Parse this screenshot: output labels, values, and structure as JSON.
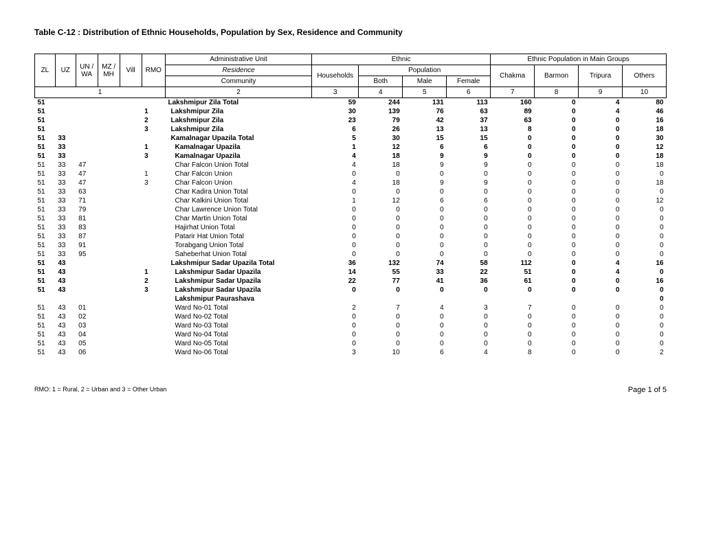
{
  "title": "Table C-12 : Distribution of Ethnic Households,  Population by Sex, Residence and Community",
  "header": {
    "zl": "ZL",
    "uz": "UZ",
    "un": "UN / WA",
    "mz": "MZ / MH",
    "vill": "Vill",
    "rmo": "RMO",
    "admin_unit": "Administrative Unit",
    "residence": "Residence",
    "community": "Community",
    "ethnic": "Ethnic",
    "main_groups": "Ethnic Population in Main Groups",
    "households": "Households",
    "population": "Population",
    "both": "Both",
    "male": "Male",
    "female": "Female",
    "chakma": "Chakma",
    "barmon": "Barmon",
    "tripura": "Tripura",
    "others": "Others",
    "colnums": [
      "1",
      "2",
      "3",
      "4",
      "5",
      "6",
      "7",
      "8",
      "9",
      "10"
    ]
  },
  "rows": [
    {
      "zl": "51",
      "uz": "",
      "un": "",
      "mz": "",
      "vill": "",
      "rmo": "",
      "admin": "Lakshmipur Zila Total",
      "indent": 0,
      "bold": true,
      "hh": "59",
      "both": "244",
      "male": "131",
      "female": "113",
      "chakma": "160",
      "barmon": "0",
      "tripura": "4",
      "others": "80"
    },
    {
      "zl": "51",
      "uz": "",
      "un": "",
      "mz": "",
      "vill": "",
      "rmo": "1",
      "admin": "Lakshmipur Zila",
      "indent": 1,
      "bold": true,
      "hh": "30",
      "both": "139",
      "male": "76",
      "female": "63",
      "chakma": "89",
      "barmon": "0",
      "tripura": "4",
      "others": "46"
    },
    {
      "zl": "51",
      "uz": "",
      "un": "",
      "mz": "",
      "vill": "",
      "rmo": "2",
      "admin": "Lakshmipur Zila",
      "indent": 1,
      "bold": true,
      "hh": "23",
      "both": "79",
      "male": "42",
      "female": "37",
      "chakma": "63",
      "barmon": "0",
      "tripura": "0",
      "others": "16"
    },
    {
      "zl": "51",
      "uz": "",
      "un": "",
      "mz": "",
      "vill": "",
      "rmo": "3",
      "admin": "Lakshmipur Zila",
      "indent": 1,
      "bold": true,
      "hh": "6",
      "both": "26",
      "male": "13",
      "female": "13",
      "chakma": "8",
      "barmon": "0",
      "tripura": "0",
      "others": "18"
    },
    {
      "zl": "51",
      "uz": "33",
      "un": "",
      "mz": "",
      "vill": "",
      "rmo": "",
      "admin": "Kamalnagar Upazila Total",
      "indent": 1,
      "bold": true,
      "hh": "5",
      "both": "30",
      "male": "15",
      "female": "15",
      "chakma": "0",
      "barmon": "0",
      "tripura": "0",
      "others": "30"
    },
    {
      "zl": "51",
      "uz": "33",
      "un": "",
      "mz": "",
      "vill": "",
      "rmo": "1",
      "admin": "Kamalnagar Upazila",
      "indent": 2,
      "bold": true,
      "hh": "1",
      "both": "12",
      "male": "6",
      "female": "6",
      "chakma": "0",
      "barmon": "0",
      "tripura": "0",
      "others": "12"
    },
    {
      "zl": "51",
      "uz": "33",
      "un": "",
      "mz": "",
      "vill": "",
      "rmo": "3",
      "admin": "Kamalnagar Upazila",
      "indent": 2,
      "bold": true,
      "hh": "4",
      "both": "18",
      "male": "9",
      "female": "9",
      "chakma": "0",
      "barmon": "0",
      "tripura": "0",
      "others": "18"
    },
    {
      "zl": "51",
      "uz": "33",
      "un": "47",
      "mz": "",
      "vill": "",
      "rmo": "",
      "admin": "Char Falcon Union Total",
      "indent": 2,
      "bold": false,
      "hh": "4",
      "both": "18",
      "male": "9",
      "female": "9",
      "chakma": "0",
      "barmon": "0",
      "tripura": "0",
      "others": "18"
    },
    {
      "zl": "51",
      "uz": "33",
      "un": "47",
      "mz": "",
      "vill": "",
      "rmo": "1",
      "admin": "Char Falcon Union",
      "indent": 2,
      "bold": false,
      "hh": "0",
      "both": "0",
      "male": "0",
      "female": "0",
      "chakma": "0",
      "barmon": "0",
      "tripura": "0",
      "others": "0"
    },
    {
      "zl": "51",
      "uz": "33",
      "un": "47",
      "mz": "",
      "vill": "",
      "rmo": "3",
      "admin": "Char Falcon Union",
      "indent": 2,
      "bold": false,
      "hh": "4",
      "both": "18",
      "male": "9",
      "female": "9",
      "chakma": "0",
      "barmon": "0",
      "tripura": "0",
      "others": "18"
    },
    {
      "zl": "51",
      "uz": "33",
      "un": "63",
      "mz": "",
      "vill": "",
      "rmo": "",
      "admin": "Char Kadira Union Total",
      "indent": 2,
      "bold": false,
      "hh": "0",
      "both": "0",
      "male": "0",
      "female": "0",
      "chakma": "0",
      "barmon": "0",
      "tripura": "0",
      "others": "0"
    },
    {
      "zl": "51",
      "uz": "33",
      "un": "71",
      "mz": "",
      "vill": "",
      "rmo": "",
      "admin": "Char Kalkini Union Total",
      "indent": 2,
      "bold": false,
      "hh": "1",
      "both": "12",
      "male": "6",
      "female": "6",
      "chakma": "0",
      "barmon": "0",
      "tripura": "0",
      "others": "12"
    },
    {
      "zl": "51",
      "uz": "33",
      "un": "79",
      "mz": "",
      "vill": "",
      "rmo": "",
      "admin": "Char Lawrence Union Total",
      "indent": 2,
      "bold": false,
      "hh": "0",
      "both": "0",
      "male": "0",
      "female": "0",
      "chakma": "0",
      "barmon": "0",
      "tripura": "0",
      "others": "0"
    },
    {
      "zl": "51",
      "uz": "33",
      "un": "81",
      "mz": "",
      "vill": "",
      "rmo": "",
      "admin": "Char Martin Union Total",
      "indent": 2,
      "bold": false,
      "hh": "0",
      "both": "0",
      "male": "0",
      "female": "0",
      "chakma": "0",
      "barmon": "0",
      "tripura": "0",
      "others": "0"
    },
    {
      "zl": "51",
      "uz": "33",
      "un": "83",
      "mz": "",
      "vill": "",
      "rmo": "",
      "admin": "Hajirhat Union Total",
      "indent": 2,
      "bold": false,
      "hh": "0",
      "both": "0",
      "male": "0",
      "female": "0",
      "chakma": "0",
      "barmon": "0",
      "tripura": "0",
      "others": "0"
    },
    {
      "zl": "51",
      "uz": "33",
      "un": "87",
      "mz": "",
      "vill": "",
      "rmo": "",
      "admin": "Patarir Hat Union Total",
      "indent": 2,
      "bold": false,
      "hh": "0",
      "both": "0",
      "male": "0",
      "female": "0",
      "chakma": "0",
      "barmon": "0",
      "tripura": "0",
      "others": "0"
    },
    {
      "zl": "51",
      "uz": "33",
      "un": "91",
      "mz": "",
      "vill": "",
      "rmo": "",
      "admin": "Torabgang Union Total",
      "indent": 2,
      "bold": false,
      "hh": "0",
      "both": "0",
      "male": "0",
      "female": "0",
      "chakma": "0",
      "barmon": "0",
      "tripura": "0",
      "others": "0"
    },
    {
      "zl": "51",
      "uz": "33",
      "un": "95",
      "mz": "",
      "vill": "",
      "rmo": "",
      "admin": "Saheberhat Union Total",
      "indent": 2,
      "bold": false,
      "hh": "0",
      "both": "0",
      "male": "0",
      "female": "0",
      "chakma": "0",
      "barmon": "0",
      "tripura": "0",
      "others": "0"
    },
    {
      "zl": "51",
      "uz": "43",
      "un": "",
      "mz": "",
      "vill": "",
      "rmo": "",
      "admin": "Lakshmipur Sadar Upazila Total",
      "indent": 1,
      "bold": true,
      "hh": "36",
      "both": "132",
      "male": "74",
      "female": "58",
      "chakma": "112",
      "barmon": "0",
      "tripura": "4",
      "others": "16"
    },
    {
      "zl": "51",
      "uz": "43",
      "un": "",
      "mz": "",
      "vill": "",
      "rmo": "1",
      "admin": "Lakshmipur Sadar Upazila",
      "indent": 2,
      "bold": true,
      "hh": "14",
      "both": "55",
      "male": "33",
      "female": "22",
      "chakma": "51",
      "barmon": "0",
      "tripura": "4",
      "others": "0"
    },
    {
      "zl": "51",
      "uz": "43",
      "un": "",
      "mz": "",
      "vill": "",
      "rmo": "2",
      "admin": "Lakshmipur Sadar Upazila",
      "indent": 2,
      "bold": true,
      "hh": "22",
      "both": "77",
      "male": "41",
      "female": "36",
      "chakma": "61",
      "barmon": "0",
      "tripura": "0",
      "others": "16"
    },
    {
      "zl": "51",
      "uz": "43",
      "un": "",
      "mz": "",
      "vill": "",
      "rmo": "3",
      "admin": "Lakshmipur Sadar Upazila",
      "indent": 2,
      "bold": true,
      "hh": "0",
      "both": "0",
      "male": "0",
      "female": "0",
      "chakma": "0",
      "barmon": "0",
      "tripura": "0",
      "others": "0"
    },
    {
      "zl": "",
      "uz": "",
      "un": "",
      "mz": "",
      "vill": "",
      "rmo": "",
      "admin": "Lakshmipur Paurashava",
      "indent": 2,
      "bold": true,
      "hh": "",
      "both": "",
      "male": "",
      "female": "",
      "chakma": "",
      "barmon": "",
      "tripura": "",
      "others": "0"
    },
    {
      "zl": "51",
      "uz": "43",
      "un": "01",
      "mz": "",
      "vill": "",
      "rmo": "",
      "admin": "Ward No-01 Total",
      "indent": 2,
      "bold": false,
      "hh": "2",
      "both": "7",
      "male": "4",
      "female": "3",
      "chakma": "7",
      "barmon": "0",
      "tripura": "0",
      "others": "0"
    },
    {
      "zl": "51",
      "uz": "43",
      "un": "02",
      "mz": "",
      "vill": "",
      "rmo": "",
      "admin": "Ward No-02 Total",
      "indent": 2,
      "bold": false,
      "hh": "0",
      "both": "0",
      "male": "0",
      "female": "0",
      "chakma": "0",
      "barmon": "0",
      "tripura": "0",
      "others": "0"
    },
    {
      "zl": "51",
      "uz": "43",
      "un": "03",
      "mz": "",
      "vill": "",
      "rmo": "",
      "admin": "Ward No-03 Total",
      "indent": 2,
      "bold": false,
      "hh": "0",
      "both": "0",
      "male": "0",
      "female": "0",
      "chakma": "0",
      "barmon": "0",
      "tripura": "0",
      "others": "0"
    },
    {
      "zl": "51",
      "uz": "43",
      "un": "04",
      "mz": "",
      "vill": "",
      "rmo": "",
      "admin": "Ward No-04 Total",
      "indent": 2,
      "bold": false,
      "hh": "0",
      "both": "0",
      "male": "0",
      "female": "0",
      "chakma": "0",
      "barmon": "0",
      "tripura": "0",
      "others": "0"
    },
    {
      "zl": "51",
      "uz": "43",
      "un": "05",
      "mz": "",
      "vill": "",
      "rmo": "",
      "admin": "Ward No-05 Total",
      "indent": 2,
      "bold": false,
      "hh": "0",
      "both": "0",
      "male": "0",
      "female": "0",
      "chakma": "0",
      "barmon": "0",
      "tripura": "0",
      "others": "0"
    },
    {
      "zl": "51",
      "uz": "43",
      "un": "06",
      "mz": "",
      "vill": "",
      "rmo": "",
      "admin": "Ward No-06 Total",
      "indent": 2,
      "bold": false,
      "hh": "3",
      "both": "10",
      "male": "6",
      "female": "4",
      "chakma": "8",
      "barmon": "0",
      "tripura": "0",
      "others": "2"
    }
  ],
  "footer": {
    "note": "RMO: 1 = Rural, 2 = Urban and 3 = Other Urban",
    "page": "Page 1 of 5"
  }
}
